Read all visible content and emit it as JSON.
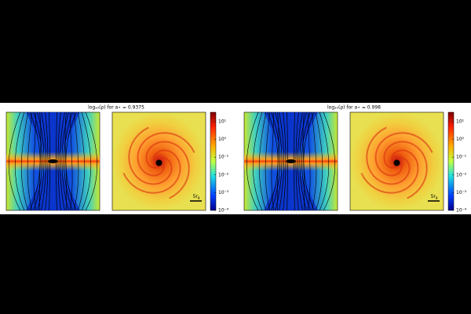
{
  "figures": [
    {
      "title": "log₁₀(ρ) for a⋆ = 0.9375",
      "colorbar_ticks": [
        "10¹",
        "10⁰",
        "10⁻¹",
        "10⁻²",
        "10⁻³",
        "10⁻⁴"
      ],
      "scale_bar": {
        "value": "5r",
        "sub": "g"
      }
    },
    {
      "title": "log₁₀(ρ) for a⋆ = 0.998",
      "colorbar_ticks": [
        "10¹",
        "10⁰",
        "10⁻¹",
        "10⁻²",
        "10⁻³",
        "10⁻⁴"
      ],
      "scale_bar": {
        "value": "5r",
        "sub": "g"
      }
    }
  ]
}
